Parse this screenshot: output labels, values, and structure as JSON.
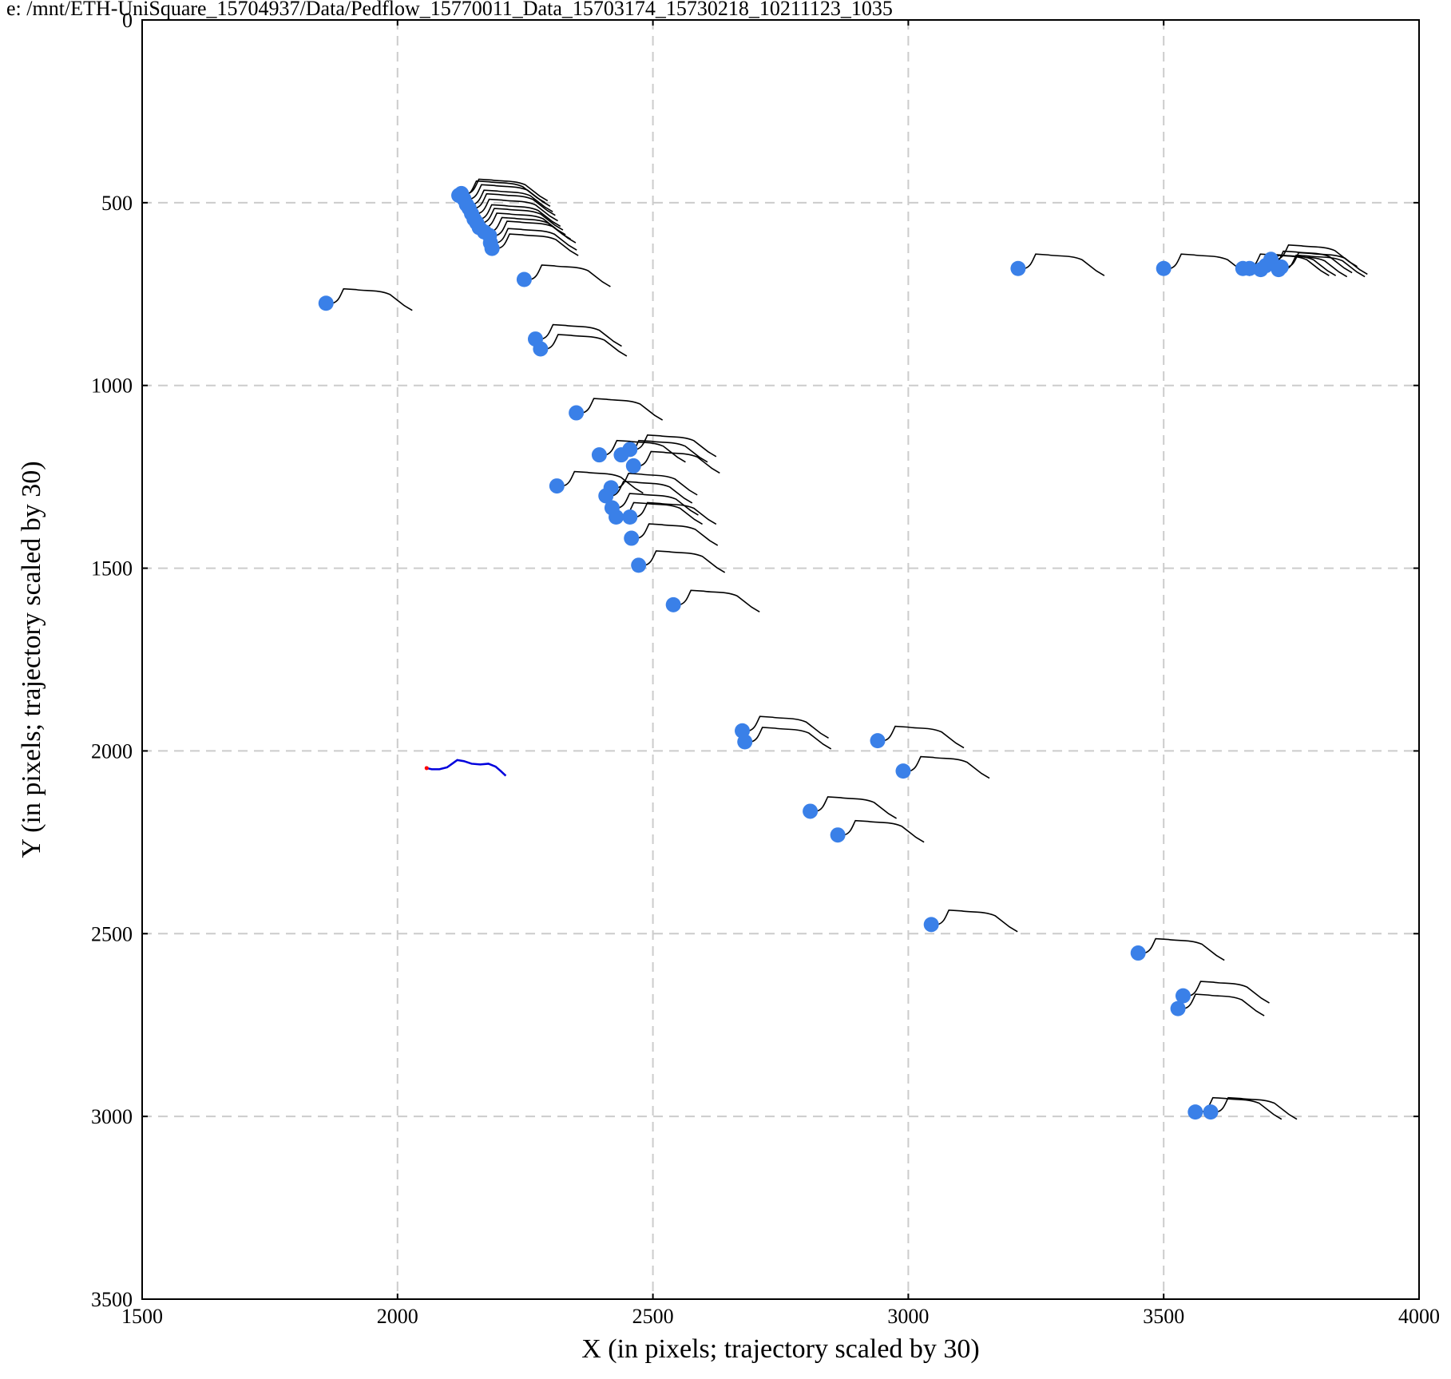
{
  "chart_data": {
    "type": "scatter",
    "title": "e: /mnt/ETH-UniSquare_15704937/Data/Pedflow_15770011_Data_15703174_15730218_10211123_1035",
    "xlabel": "X (in pixels; trajectory scaled by 30)",
    "ylabel": "Y (in pixels; trajectory scaled by 30)",
    "xlim": [
      1500,
      4000
    ],
    "ylim": [
      3500,
      0
    ],
    "xticks": [
      "1500",
      "2000",
      "2500",
      "3000",
      "3500",
      "4000"
    ],
    "yticks": [
      "0",
      "500",
      "1000",
      "1500",
      "2000",
      "2500",
      "3000",
      "3500"
    ],
    "grid": true,
    "colors": {
      "points": "#3a80e8",
      "neighbor_trajectories": "#000000",
      "target_trajectory": "#0000dd",
      "target_start": "#ff0000",
      "grid": "#cccccc"
    },
    "points": [
      [
        1860,
        775
      ],
      [
        2120,
        480
      ],
      [
        2125,
        475
      ],
      [
        2130,
        490
      ],
      [
        2135,
        505
      ],
      [
        2140,
        515
      ],
      [
        2145,
        530
      ],
      [
        2150,
        545
      ],
      [
        2155,
        555
      ],
      [
        2160,
        568
      ],
      [
        2170,
        580
      ],
      [
        2180,
        590
      ],
      [
        2182,
        610
      ],
      [
        2185,
        625
      ],
      [
        2248,
        710
      ],
      [
        2270,
        873
      ],
      [
        2280,
        900
      ],
      [
        2350,
        1075
      ],
      [
        2395,
        1190
      ],
      [
        2438,
        1190
      ],
      [
        2455,
        1175
      ],
      [
        2462,
        1220
      ],
      [
        2312,
        1275
      ],
      [
        2418,
        1280
      ],
      [
        2408,
        1302
      ],
      [
        2420,
        1335
      ],
      [
        2428,
        1360
      ],
      [
        2455,
        1360
      ],
      [
        2458,
        1418
      ],
      [
        2472,
        1492
      ],
      [
        2540,
        1600
      ],
      [
        2675,
        1945
      ],
      [
        2680,
        1975
      ],
      [
        2940,
        1972
      ],
      [
        2990,
        2055
      ],
      [
        2808,
        2165
      ],
      [
        2862,
        2230
      ],
      [
        3045,
        2475
      ],
      [
        3215,
        680
      ],
      [
        3500,
        680
      ],
      [
        3655,
        680
      ],
      [
        3668,
        680
      ],
      [
        3690,
        683
      ],
      [
        3700,
        672
      ],
      [
        3710,
        655
      ],
      [
        3725,
        683
      ],
      [
        3730,
        676
      ],
      [
        3450,
        2553
      ],
      [
        3538,
        2670
      ],
      [
        3528,
        2705
      ],
      [
        3562,
        2988
      ],
      [
        3592,
        2988
      ]
    ],
    "target_trajectory": [
      [
        2057,
        2047
      ],
      [
        2067,
        2050
      ],
      [
        2082,
        2050
      ],
      [
        2097,
        2045
      ],
      [
        2107,
        2035
      ],
      [
        2117,
        2025
      ],
      [
        2130,
        2028
      ],
      [
        2145,
        2035
      ],
      [
        2162,
        2037
      ],
      [
        2178,
        2035
      ],
      [
        2192,
        2043
      ],
      [
        2202,
        2055
      ],
      [
        2212,
        2068
      ]
    ],
    "target_start": [
      2057,
      2047
    ]
  }
}
